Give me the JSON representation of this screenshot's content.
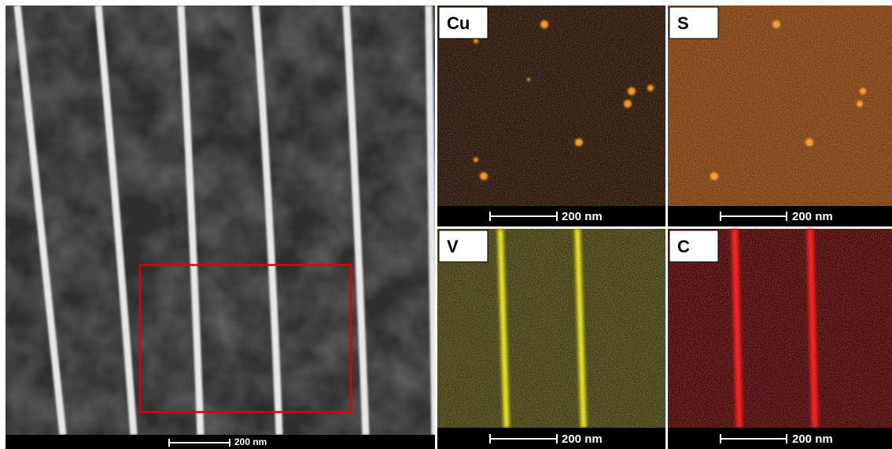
{
  "main_image": {
    "scale_bar": "200 nm"
  },
  "maps": [
    {
      "label": "Cu",
      "scale_bar": "200 nm"
    },
    {
      "label": "S",
      "scale_bar": "200 nm"
    },
    {
      "label": "V",
      "scale_bar": "200 nm"
    },
    {
      "label": "C",
      "scale_bar": "200 nm"
    }
  ]
}
